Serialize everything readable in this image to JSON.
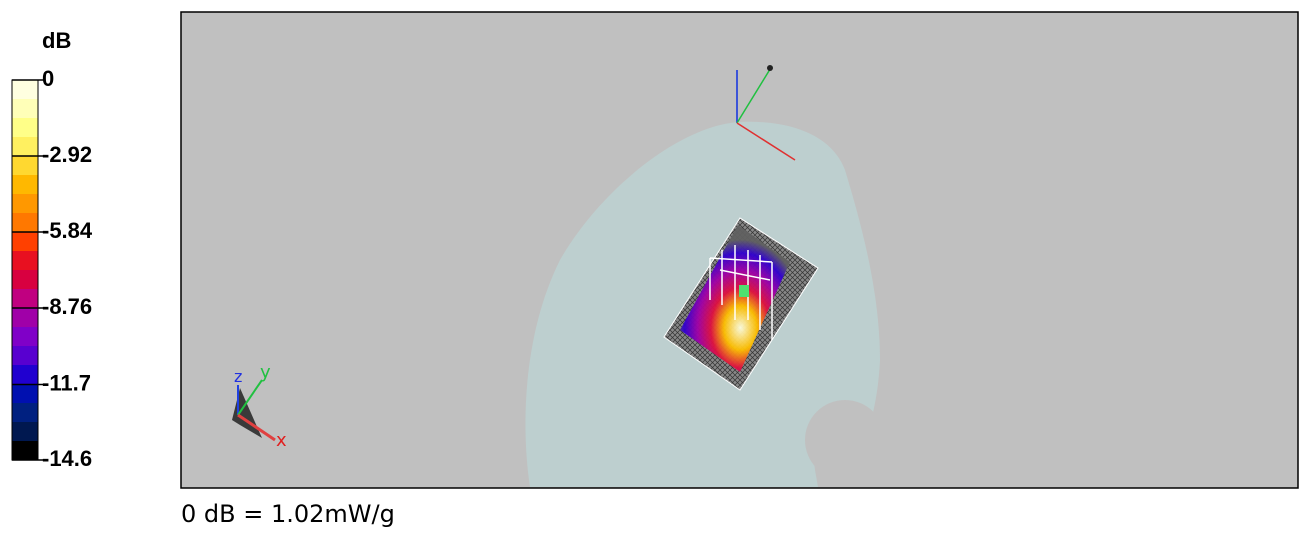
{
  "colorbar": {
    "unit": "dB",
    "ticks": [
      0,
      -2.92,
      -5.84,
      -8.76,
      -11.7,
      -14.6
    ],
    "colors": [
      "#ffffe0",
      "#ffffb8",
      "#ffff88",
      "#fff060",
      "#ffd830",
      "#ffb800",
      "#ff9800",
      "#ff7800",
      "#ff4000",
      "#e81020",
      "#d80040",
      "#c00080",
      "#a000a8",
      "#8000c8",
      "#5800d0",
      "#2000d0",
      "#0010b0",
      "#002080",
      "#001850",
      "#000000"
    ]
  },
  "viewport": {
    "axes": {
      "z": "z",
      "y": "y",
      "x": "x"
    }
  },
  "caption": "0 dB = 1.02mW/g"
}
